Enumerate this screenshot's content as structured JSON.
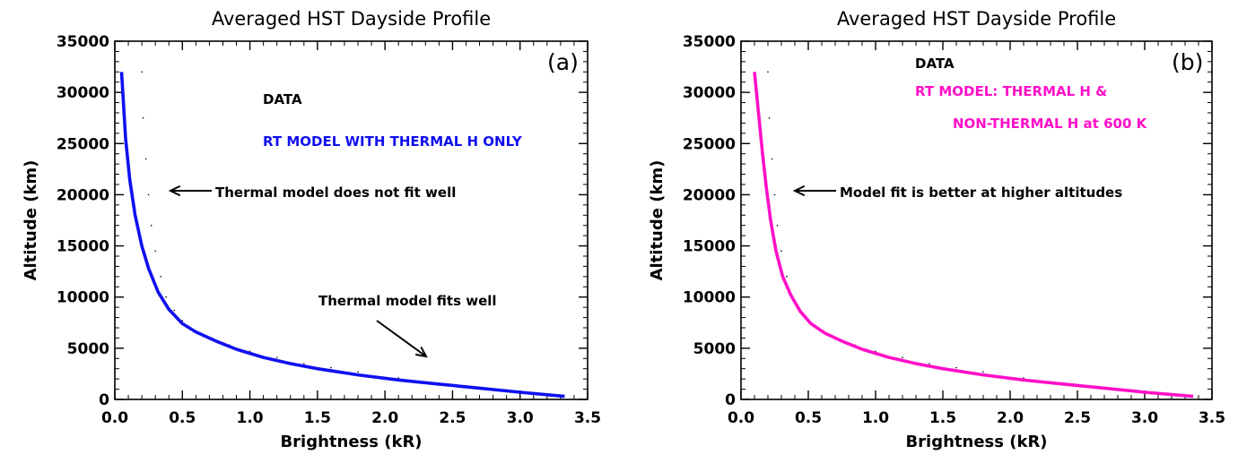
{
  "chart_data": [
    {
      "type": "line",
      "panel": "(a)",
      "title": "Averaged HST Dayside Profile",
      "xlabel": "Brightness (kR)",
      "ylabel": "Altitude (km)",
      "xlim": [
        0.0,
        3.5
      ],
      "ylim": [
        0,
        35000
      ],
      "xticks": [
        "0.0",
        "0.5",
        "1.0",
        "1.5",
        "2.0",
        "2.5",
        "3.0",
        "3.5"
      ],
      "yticks": [
        "0",
        "5000",
        "10000",
        "15000",
        "20000",
        "25000",
        "30000",
        "35000"
      ],
      "legend": [
        {
          "label": "DATA",
          "color": "#000000"
        },
        {
          "label": "RT MODEL WITH THERMAL H ONLY",
          "color": "#1010f0"
        }
      ],
      "annotations": [
        "Thermal model does not fit well",
        "Thermal model fits well"
      ],
      "series": [
        {
          "name": "DATA",
          "color": "#000000",
          "x": [
            3.3,
            3.0,
            2.7,
            2.4,
            2.1,
            1.8,
            1.6,
            1.4,
            1.2,
            1.0,
            0.85,
            0.7,
            0.6,
            0.5,
            0.44,
            0.38,
            0.34,
            0.3,
            0.27,
            0.25,
            0.23,
            0.21,
            0.2
          ],
          "y": [
            400,
            700,
            1100,
            1600,
            2100,
            2700,
            3100,
            3500,
            4100,
            4700,
            5300,
            6000,
            6700,
            7700,
            8700,
            10000,
            12000,
            14500,
            17000,
            20000,
            23500,
            27500,
            32000
          ]
        },
        {
          "name": "RT MODEL WITH THERMAL H ONLY",
          "color": "#1010f0",
          "x": [
            3.33,
            3.0,
            2.7,
            2.4,
            2.1,
            1.8,
            1.5,
            1.3,
            1.1,
            0.9,
            0.75,
            0.6,
            0.5,
            0.4,
            0.32,
            0.25,
            0.2,
            0.15,
            0.11,
            0.08,
            0.05
          ],
          "y": [
            300,
            700,
            1100,
            1500,
            1900,
            2400,
            3000,
            3500,
            4100,
            4900,
            5700,
            6600,
            7400,
            8800,
            10500,
            12800,
            15000,
            18000,
            21500,
            25500,
            32000
          ]
        }
      ]
    },
    {
      "type": "line",
      "panel": "(b)",
      "title": "Averaged HST Dayside Profile",
      "xlabel": "Brightness (kR)",
      "ylabel": "Altitude (km)",
      "xlim": [
        0.0,
        3.5
      ],
      "ylim": [
        0,
        35000
      ],
      "xticks": [
        "0.0",
        "0.5",
        "1.0",
        "1.5",
        "2.0",
        "2.5",
        "3.0",
        "3.5"
      ],
      "yticks": [
        "0",
        "5000",
        "10000",
        "15000",
        "20000",
        "25000",
        "30000",
        "35000"
      ],
      "legend": [
        {
          "label": "DATA",
          "color": "#000000"
        },
        {
          "label": "RT MODEL: THERMAL H &",
          "color": "#ff10c8"
        },
        {
          "label": "NON-THERMAL H at 600 K",
          "color": "#ff10c8"
        }
      ],
      "annotations": [
        "Model fit is better at higher altitudes"
      ],
      "series": [
        {
          "name": "DATA",
          "color": "#000000",
          "x": [
            3.3,
            3.0,
            2.7,
            2.4,
            2.1,
            1.8,
            1.6,
            1.4,
            1.2,
            1.0,
            0.85,
            0.7,
            0.6,
            0.5,
            0.44,
            0.38,
            0.34,
            0.3,
            0.27,
            0.25,
            0.23,
            0.21,
            0.2
          ],
          "y": [
            400,
            700,
            1100,
            1600,
            2100,
            2700,
            3100,
            3500,
            4100,
            4700,
            5300,
            6000,
            6700,
            7700,
            8700,
            10000,
            12000,
            14500,
            17000,
            20000,
            23500,
            27500,
            32000
          ]
        },
        {
          "name": "RT MODEL: THERMAL H & NON-THERMAL H at 600 K",
          "color": "#ff10c8",
          "x": [
            3.36,
            3.0,
            2.7,
            2.4,
            2.1,
            1.8,
            1.5,
            1.3,
            1.1,
            0.9,
            0.75,
            0.62,
            0.52,
            0.44,
            0.37,
            0.31,
            0.26,
            0.22,
            0.19,
            0.16,
            0.13,
            0.1
          ],
          "y": [
            300,
            700,
            1100,
            1500,
            1900,
            2400,
            3000,
            3500,
            4100,
            4900,
            5700,
            6500,
            7400,
            8600,
            10200,
            12000,
            14500,
            17500,
            20500,
            24000,
            28000,
            32000
          ]
        }
      ]
    }
  ]
}
